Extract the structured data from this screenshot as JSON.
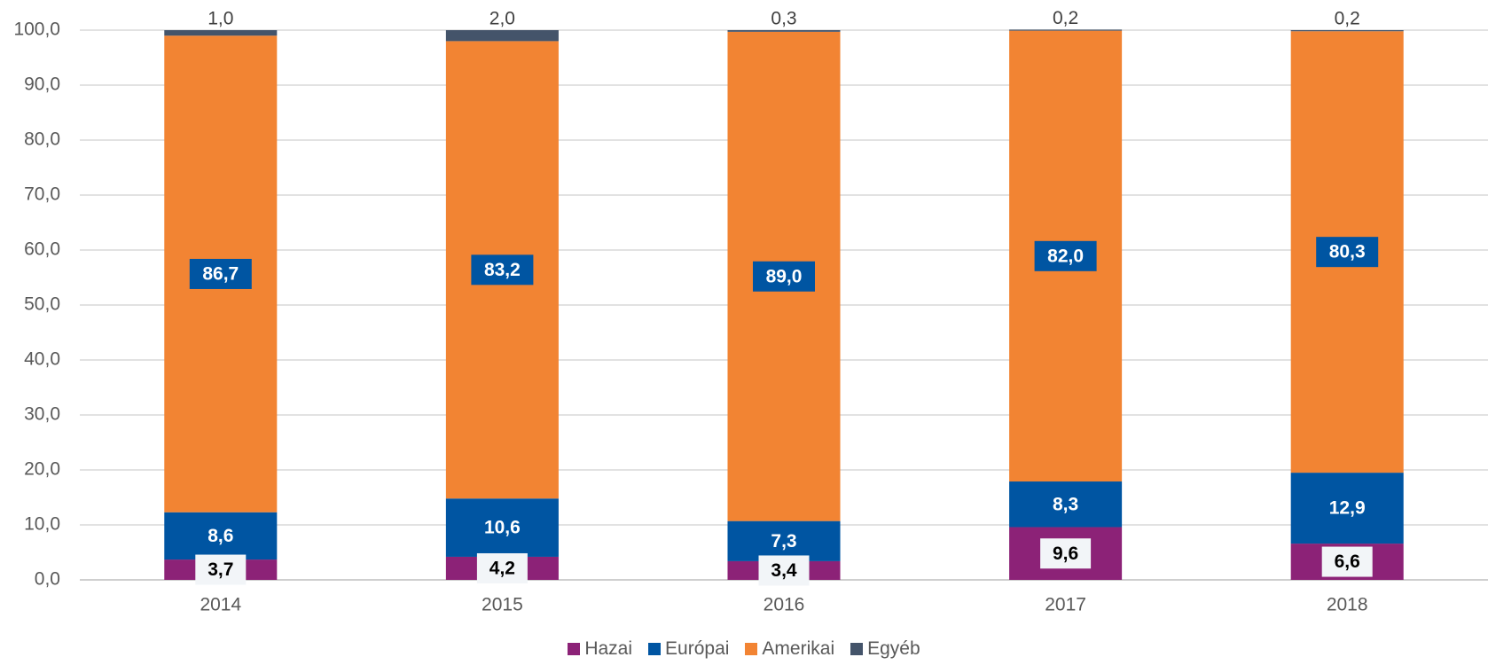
{
  "chart_data": {
    "type": "stacked_bar",
    "categories": [
      "2014",
      "2015",
      "2016",
      "2017",
      "2018"
    ],
    "series": [
      {
        "name": "Hazai",
        "color": "#8c2277",
        "values": [
          3.7,
          4.2,
          3.4,
          9.6,
          6.6
        ],
        "value_labels": [
          "3,7",
          "4,2",
          "3,4",
          "9,6",
          "6,6"
        ]
      },
      {
        "name": "Európai",
        "color": "#0055a2",
        "values": [
          8.6,
          10.6,
          7.3,
          8.3,
          12.9
        ],
        "value_labels": [
          "8,6",
          "10,6",
          "7,3",
          "8,3",
          "12,9"
        ]
      },
      {
        "name": "Amerikai",
        "color": "#f28433",
        "values": [
          86.7,
          83.2,
          89.0,
          82.0,
          80.3
        ],
        "value_labels": [
          "86,7",
          "83,2",
          "89,0",
          "82,0",
          "80,3"
        ]
      },
      {
        "name": "Egyéb",
        "color": "#44546a",
        "values": [
          1.0,
          2.0,
          0.3,
          0.2,
          0.2
        ],
        "value_labels": [
          "1,0",
          "2,0",
          "0,3",
          "0,2",
          "0,2"
        ]
      }
    ],
    "ylim": [
      0,
      100
    ],
    "yticks": [
      {
        "value": 0,
        "label": "0,0"
      },
      {
        "value": 10,
        "label": "10,0"
      },
      {
        "value": 20,
        "label": "20,0"
      },
      {
        "value": 30,
        "label": "30,0"
      },
      {
        "value": 40,
        "label": "40,0"
      },
      {
        "value": 50,
        "label": "50,0"
      },
      {
        "value": 60,
        "label": "60,0"
      },
      {
        "value": 70,
        "label": "70,0"
      },
      {
        "value": 80,
        "label": "80,0"
      },
      {
        "value": 90,
        "label": "90,0"
      },
      {
        "value": 100,
        "label": "100,0"
      }
    ],
    "grid": true,
    "legend": "bottom"
  }
}
